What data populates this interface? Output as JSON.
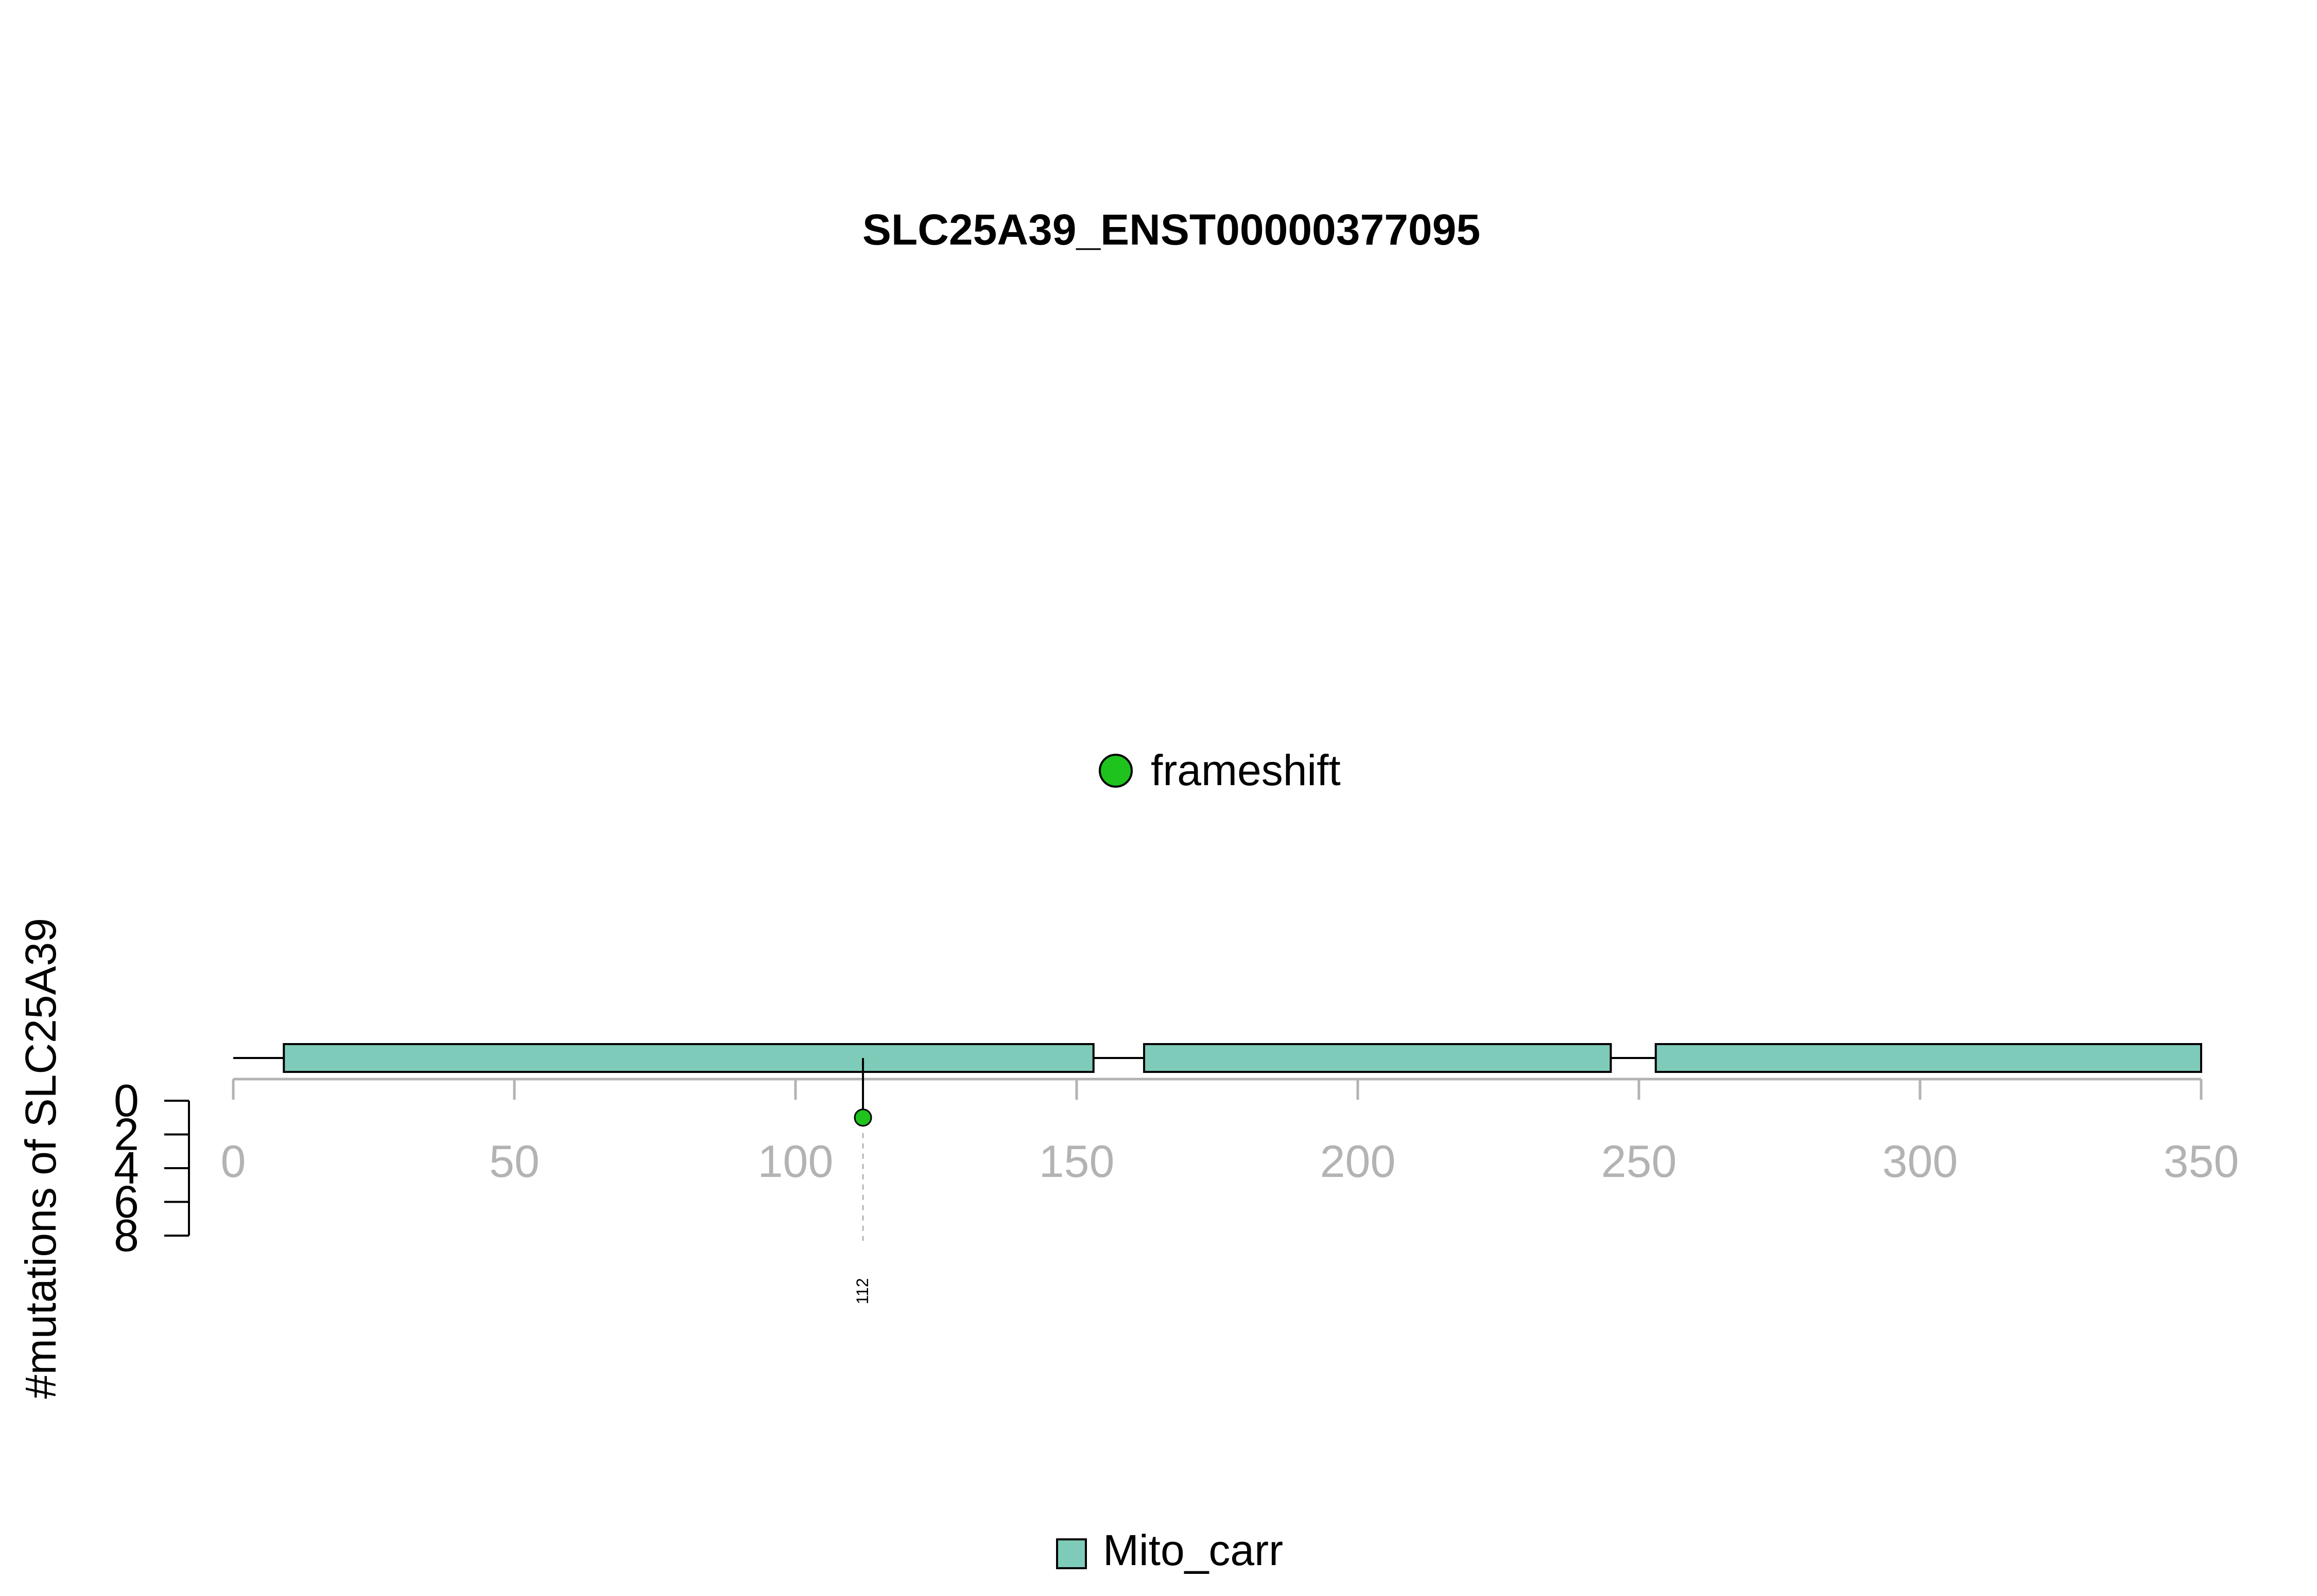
{
  "chart_data": {
    "type": "lollipop",
    "title": "SLC25A39_ENST00000377095",
    "ylabel": "#mutations of SLC25A39",
    "xlim": [
      0,
      350
    ],
    "x_ticks": [
      0,
      50,
      100,
      150,
      200,
      250,
      300,
      350
    ],
    "y_ticks": [
      0,
      2,
      4,
      6,
      8
    ],
    "protein_length": 350,
    "domains": [
      {
        "name": "Mito_carr",
        "start": 9,
        "end": 153
      },
      {
        "name": "Mito_carr",
        "start": 162,
        "end": 245
      },
      {
        "name": "Mito_carr",
        "start": 253,
        "end": 350
      }
    ],
    "mutations": [
      {
        "position": 112,
        "count": 1,
        "type": "frameshift",
        "label": "112"
      }
    ],
    "mutation_legend": [
      {
        "label": "frameshift",
        "color": "#1ec31e"
      }
    ],
    "domain_legend": [
      {
        "label": "Mito_carr",
        "color": "#7fcbb9"
      }
    ],
    "colors": {
      "domain_fill": "#7fcbb9",
      "frameshift": "#1ec31e",
      "axis_gray": "#b3b3b3"
    }
  }
}
